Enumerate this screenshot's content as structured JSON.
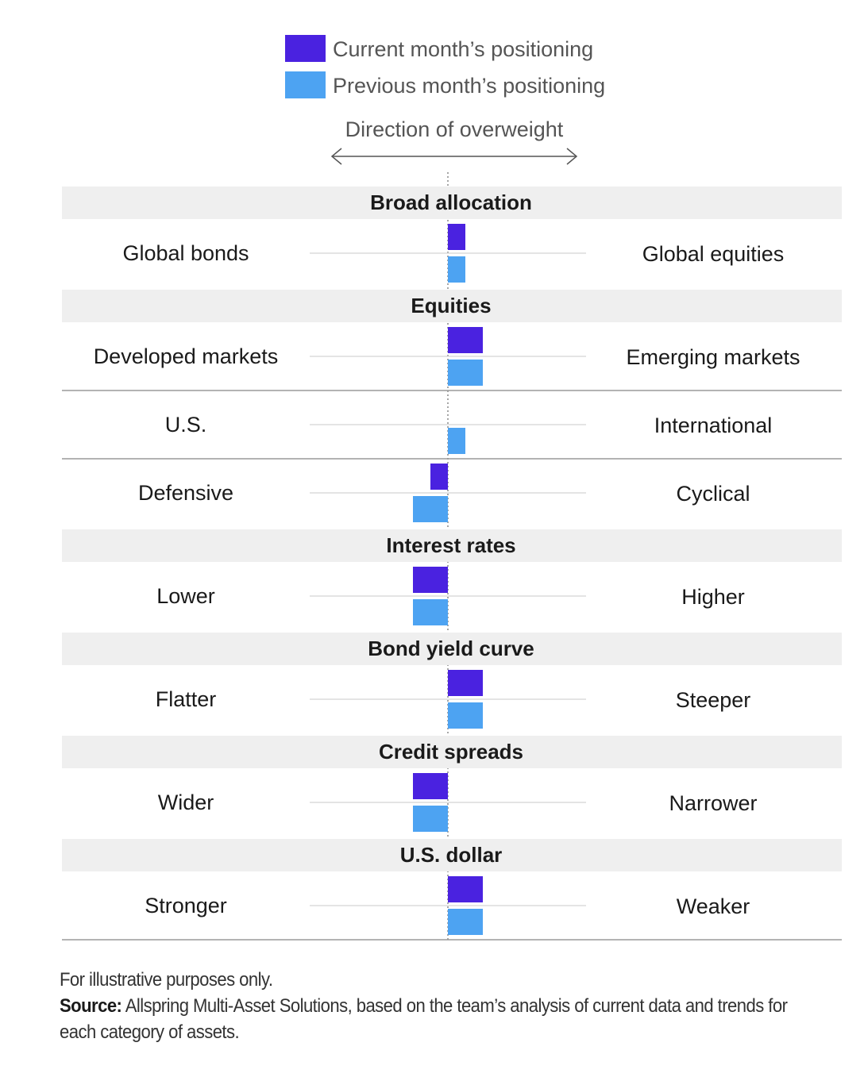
{
  "legend": {
    "current_label": "Current month’s positioning",
    "previous_label": "Previous month’s positioning"
  },
  "direction_label": "Direction of overweight",
  "colors": {
    "current": "#4a22e0",
    "previous": "#4da3f2",
    "section_bg": "#efefef",
    "line": "#9a9a9a",
    "center_line": "#777777"
  },
  "chart_data": {
    "type": "bar",
    "orientation": "horizontal-diverging",
    "xlim": [
      -4,
      4
    ],
    "series": [
      {
        "name": "Current month’s positioning",
        "key": "current"
      },
      {
        "name": "Previous month’s positioning",
        "key": "previous"
      }
    ],
    "sections": [
      {
        "title": "Broad allocation",
        "rows": [
          {
            "left": "Global bonds",
            "right": "Global equities",
            "current": 0.5,
            "previous": 0.5
          }
        ]
      },
      {
        "title": "Equities",
        "rows": [
          {
            "left": "Developed markets",
            "right": "Emerging markets",
            "current": 1,
            "previous": 1
          },
          {
            "left": "U.S.",
            "right": "International",
            "current": 0,
            "previous": 0.5
          },
          {
            "left": "Defensive",
            "right": "Cyclical",
            "current": -0.5,
            "previous": -1
          }
        ]
      },
      {
        "title": "Interest rates",
        "rows": [
          {
            "left": "Lower",
            "right": "Higher",
            "current": -1,
            "previous": -1
          }
        ]
      },
      {
        "title": "Bond yield curve",
        "rows": [
          {
            "left": "Flatter",
            "right": "Steeper",
            "current": 1,
            "previous": 1
          }
        ]
      },
      {
        "title": "Credit spreads",
        "rows": [
          {
            "left": "Wider",
            "right": "Narrower",
            "current": -1,
            "previous": -1
          }
        ]
      },
      {
        "title": "U.S. dollar",
        "rows": [
          {
            "left": "Stronger",
            "right": "Weaker",
            "current": 1,
            "previous": 1
          }
        ]
      }
    ]
  },
  "footer": {
    "note": "For illustrative purposes only.",
    "source_label": "Source:",
    "source_text_line1": " Allspring Multi-Asset Solutions, based on the team’s analysis of current data and trends for",
    "source_text_line2": "each category of assets."
  }
}
